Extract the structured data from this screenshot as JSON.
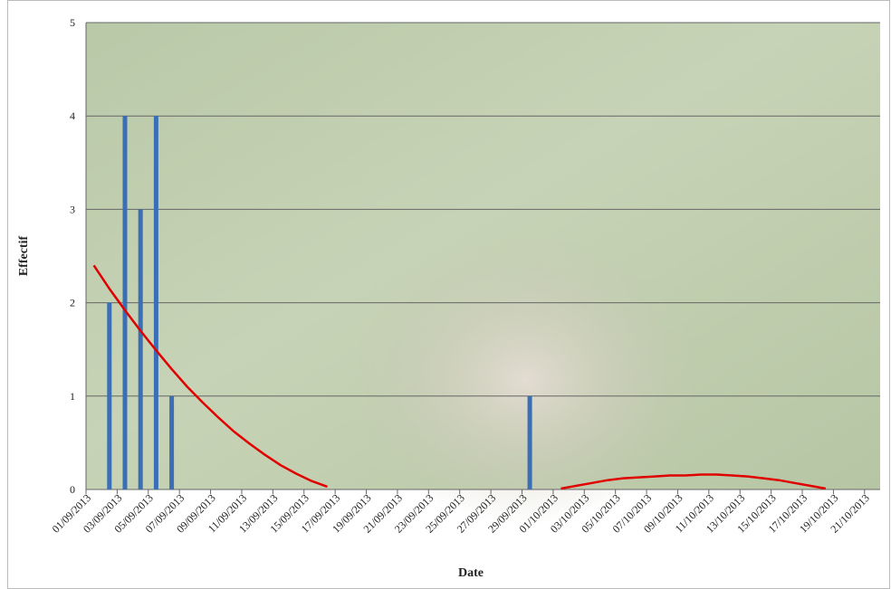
{
  "chart_data": {
    "type": "bar",
    "x_label": "Date",
    "y_label": "Effectif",
    "categories": [
      "01/09/2013",
      null,
      "03/09/2013",
      null,
      "05/09/2013",
      null,
      "07/09/2013",
      null,
      "09/09/2013",
      null,
      "11/09/2013",
      null,
      "13/09/2013",
      null,
      "15/09/2013",
      null,
      "17/09/2013",
      null,
      "19/09/2013",
      null,
      "21/09/2013",
      null,
      "23/09/2013",
      null,
      "25/09/2013",
      null,
      "27/09/2013",
      null,
      "29/09/2013",
      null,
      "01/10/2013",
      null,
      "03/10/2013",
      null,
      "05/10/2013",
      null,
      "07/10/2013",
      null,
      "09/10/2013",
      null,
      "11/10/2013",
      null,
      "13/10/2013",
      null,
      "15/10/2013",
      null,
      "17/10/2013",
      null,
      "19/10/2013",
      null,
      "21/10/2013"
    ],
    "series": [
      {
        "type": "bar",
        "color": "#3a6fb5",
        "values": [
          0,
          2,
          4,
          3,
          4,
          1,
          0,
          0,
          0,
          0,
          0,
          0,
          0,
          0,
          0,
          0,
          0,
          0,
          0,
          0,
          0,
          0,
          0,
          0,
          0,
          0,
          0,
          0,
          1,
          0,
          0,
          0,
          0,
          0,
          0,
          0,
          0,
          0,
          0,
          0,
          0,
          0,
          0,
          0,
          0,
          0,
          0,
          0,
          0,
          0,
          0
        ]
      },
      {
        "type": "line",
        "color": "#e00000",
        "values": [
          2.4,
          2.15,
          1.92,
          1.7,
          1.49,
          1.29,
          1.1,
          0.93,
          0.77,
          0.62,
          0.49,
          0.37,
          0.26,
          0.17,
          0.09,
          0.03,
          null,
          null,
          null,
          null,
          null,
          null,
          null,
          null,
          null,
          null,
          null,
          null,
          null,
          null,
          0.01,
          0.04,
          0.07,
          0.1,
          0.12,
          0.13,
          0.14,
          0.15,
          0.15,
          0.16,
          0.16,
          0.15,
          0.14,
          0.12,
          0.1,
          0.07,
          0.04,
          0.01,
          null,
          null,
          null
        ]
      }
    ],
    "ylim": [
      0,
      5
    ],
    "yticks": [
      0,
      1,
      2,
      3,
      4,
      5
    ],
    "grid": true
  }
}
